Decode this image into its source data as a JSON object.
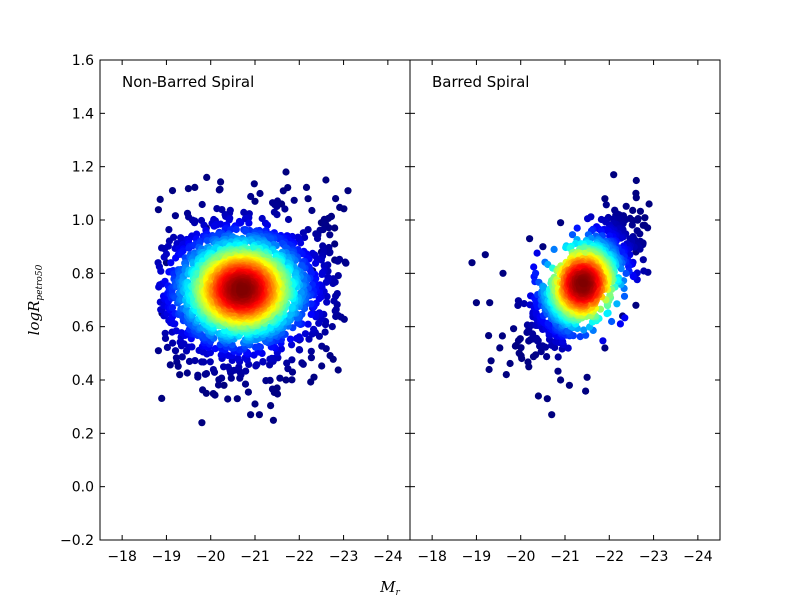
{
  "chart_data": {
    "type": "scatter",
    "xlabel": "M",
    "xlabel_sub": "r",
    "ylabel": "logR",
    "ylabel_sub": "petro50",
    "xlim": [
      -17.5,
      -24.5
    ],
    "ylim": [
      -0.2,
      1.6
    ],
    "xticks": [
      "−18",
      "−19",
      "−20",
      "−21",
      "−22",
      "−23",
      "−24"
    ],
    "yticks": [
      "−0.2",
      "0.0",
      "0.2",
      "0.4",
      "0.6",
      "0.8",
      "1.0",
      "1.2",
      "1.4",
      "1.6"
    ],
    "colormap": [
      "#00007f",
      "#0000ff",
      "#0080ff",
      "#00ffff",
      "#80ff80",
      "#ffff00",
      "#ff8000",
      "#ff0000",
      "#7f0000"
    ],
    "colormap_meaning": "point density (jet)",
    "grid": false,
    "panels": [
      {
        "title": "Non-Barred Spiral",
        "x_range": [
          -18.8,
          -23.1
        ],
        "y_range": [
          0.24,
          1.18
        ],
        "density_peak": {
          "x": -20.7,
          "y": 0.74
        },
        "sample_points": [
          {
            "x": -18.9,
            "y": 0.76
          },
          {
            "x": -19.0,
            "y": 0.84
          },
          {
            "x": -18.9,
            "y": 0.65
          },
          {
            "x": -19.3,
            "y": 0.42
          },
          {
            "x": -19.8,
            "y": 0.24
          },
          {
            "x": -19.9,
            "y": 0.35
          },
          {
            "x": -20.3,
            "y": 0.38
          },
          {
            "x": -20.6,
            "y": 0.33
          },
          {
            "x": -20.9,
            "y": 0.27
          },
          {
            "x": -21.1,
            "y": 0.27
          },
          {
            "x": -21.0,
            "y": 0.31
          },
          {
            "x": -21.5,
            "y": 0.37
          },
          {
            "x": -21.7,
            "y": 0.4
          },
          {
            "x": -22.0,
            "y": 0.55
          },
          {
            "x": -22.0,
            "y": 0.72
          },
          {
            "x": -22.3,
            "y": 0.81
          },
          {
            "x": -22.5,
            "y": 0.88
          },
          {
            "x": -22.5,
            "y": 0.99
          },
          {
            "x": -22.8,
            "y": 0.97
          },
          {
            "x": -22.8,
            "y": 0.91
          },
          {
            "x": -23.1,
            "y": 1.11
          },
          {
            "x": -22.6,
            "y": 1.15
          },
          {
            "x": -21.7,
            "y": 1.18
          },
          {
            "x": -22.2,
            "y": 1.08
          },
          {
            "x": -21.0,
            "y": 1.07
          },
          {
            "x": -21.6,
            "y": 1.06
          },
          {
            "x": -22.8,
            "y": 0.85
          },
          {
            "x": -22.3,
            "y": 0.67
          },
          {
            "x": -19.5,
            "y": 0.9
          },
          {
            "x": -19.9,
            "y": 0.97
          }
        ]
      },
      {
        "title": "Barred Spiral",
        "x_range": [
          -18.9,
          -22.9
        ],
        "y_range": [
          0.27,
          1.17
        ],
        "density_peak": {
          "x": -21.4,
          "y": 0.76
        },
        "sample_points": [
          {
            "x": -18.9,
            "y": 0.84
          },
          {
            "x": -19.2,
            "y": 0.87
          },
          {
            "x": -19.0,
            "y": 0.69
          },
          {
            "x": -19.3,
            "y": 0.69
          },
          {
            "x": -19.6,
            "y": 0.8
          },
          {
            "x": -19.9,
            "y": 0.53
          },
          {
            "x": -20.4,
            "y": 0.34
          },
          {
            "x": -20.6,
            "y": 0.33
          },
          {
            "x": -20.7,
            "y": 0.27
          },
          {
            "x": -20.9,
            "y": 0.4
          },
          {
            "x": -21.1,
            "y": 0.38
          },
          {
            "x": -21.5,
            "y": 0.41
          },
          {
            "x": -21.9,
            "y": 0.52
          },
          {
            "x": -22.3,
            "y": 0.64
          },
          {
            "x": -22.6,
            "y": 0.68
          },
          {
            "x": -22.6,
            "y": 0.88
          },
          {
            "x": -22.8,
            "y": 0.98
          },
          {
            "x": -22.9,
            "y": 1.06
          },
          {
            "x": -22.6,
            "y": 1.1
          },
          {
            "x": -22.1,
            "y": 1.17
          },
          {
            "x": -21.9,
            "y": 1.08
          },
          {
            "x": -20.9,
            "y": 0.99
          },
          {
            "x": -20.5,
            "y": 0.9
          },
          {
            "x": -20.2,
            "y": 0.93
          }
        ]
      }
    ]
  }
}
